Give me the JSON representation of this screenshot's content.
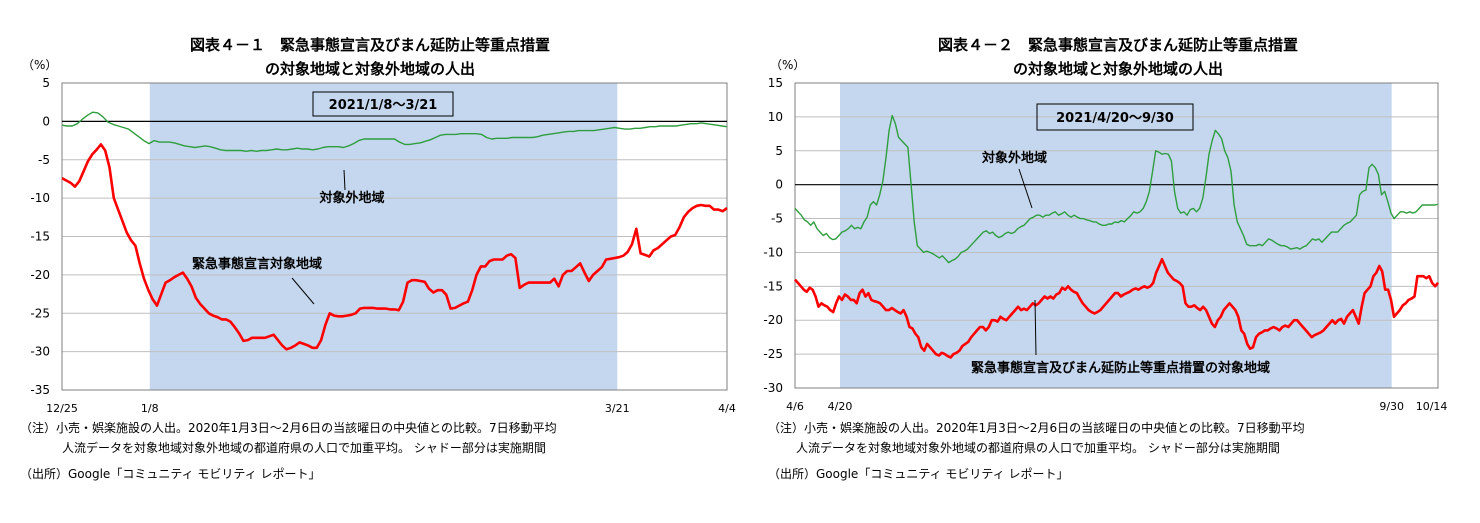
{
  "chart_data": [
    {
      "type": "line",
      "title": "図表４－１　緊急事態宣言及びまん延防止等重点措置",
      "subtitle": "の対象地域と対象外地域の人出",
      "ylabel": "（%）",
      "ylim": [
        -35,
        5
      ],
      "yticks": [
        5,
        0,
        -5,
        -10,
        -15,
        -20,
        -25,
        -30,
        -35
      ],
      "x_tick_labels": [
        "12/25",
        "1/8",
        "3/21",
        "4/4"
      ],
      "shade_label": "2021/1/8～3/21",
      "grid": "horizontal",
      "series": [
        {
          "name": "対象外地域",
          "color": "#2e9e3e",
          "values": [
            -0.5,
            -0.6,
            -0.6,
            -0.3,
            0.3,
            0.8,
            1.2,
            1.1,
            0.6,
            -0.1,
            -0.4,
            -0.6,
            -0.8,
            -1.0,
            -1.5,
            -2.0,
            -2.5,
            -2.9,
            -2.5,
            -2.7,
            -2.7,
            -2.7,
            -2.8,
            -3.0,
            -3.2,
            -3.3,
            -3.4,
            -3.3,
            -3.2,
            -3.3,
            -3.5,
            -3.7,
            -3.8,
            -3.8,
            -3.8,
            -3.8,
            -3.9,
            -3.8,
            -3.9,
            -3.8,
            -3.8,
            -3.7,
            -3.6,
            -3.7,
            -3.7,
            -3.6,
            -3.5,
            -3.6,
            -3.6,
            -3.7,
            -3.6,
            -3.4,
            -3.3,
            -3.3,
            -3.3,
            -3.4,
            -3.2,
            -2.9,
            -2.5,
            -2.3,
            -2.3,
            -2.3,
            -2.3,
            -2.3,
            -2.3,
            -2.3,
            -2.7,
            -3.0,
            -3.0,
            -2.9,
            -2.8,
            -2.6,
            -2.4,
            -2.1,
            -1.8,
            -1.7,
            -1.7,
            -1.7,
            -1.6,
            -1.6,
            -1.6,
            -1.6,
            -1.7,
            -2.1,
            -2.3,
            -2.2,
            -2.2,
            -2.2,
            -2.1,
            -2.1,
            -2.1,
            -2.1,
            -2.1,
            -2.0,
            -1.8,
            -1.7,
            -1.6,
            -1.5,
            -1.4,
            -1.3,
            -1.3,
            -1.2,
            -1.2,
            -1.2,
            -1.2,
            -1.1,
            -1.0,
            -0.9,
            -0.8,
            -0.9,
            -1.0,
            -1.0,
            -0.9,
            -0.9,
            -0.8,
            -0.7,
            -0.7,
            -0.6,
            -0.6,
            -0.6,
            -0.6,
            -0.5,
            -0.4,
            -0.3,
            -0.3,
            -0.2,
            -0.3,
            -0.4,
            -0.5,
            -0.6,
            -0.7
          ]
        },
        {
          "name": "緊急事態宣言対象地域",
          "color": "#ff0000",
          "values": [
            -7.4,
            -7.7,
            -8.0,
            -8.5,
            -7.8,
            -6.5,
            -5.2,
            -4.3,
            -3.7,
            -3.0,
            -3.8,
            -6.0,
            -10.0,
            -11.5,
            -13.0,
            -14.5,
            -15.5,
            -16.2,
            -18.5,
            -20.5,
            -22.0,
            -23.2,
            -24.0,
            -22.5,
            -21.0,
            -20.7,
            -20.3,
            -20.0,
            -19.7,
            -20.5,
            -21.5,
            -23.0,
            -23.8,
            -24.4,
            -25.0,
            -25.3,
            -25.5,
            -25.8,
            -25.8,
            -26.1,
            -26.8,
            -27.6,
            -28.6,
            -28.5,
            -28.2,
            -28.2,
            -28.2,
            -28.2,
            -28.0,
            -27.8,
            -28.5,
            -29.2,
            -29.7,
            -29.5,
            -29.2,
            -28.8,
            -29.0,
            -29.2,
            -29.5,
            -29.5,
            -28.5,
            -26.5,
            -25.0,
            -25.3,
            -25.4,
            -25.4,
            -25.3,
            -25.2,
            -25.0,
            -24.4,
            -24.3,
            -24.3,
            -24.3,
            -24.4,
            -24.4,
            -24.4,
            -24.5,
            -24.5,
            -24.6,
            -23.5,
            -21.0,
            -20.7,
            -20.7,
            -20.8,
            -20.9,
            -21.8,
            -22.3,
            -22.0,
            -22.0,
            -22.6,
            -24.4,
            -24.3,
            -24.0,
            -23.7,
            -23.5,
            -22.0,
            -20.0,
            -18.9,
            -18.9,
            -18.2,
            -18.0,
            -18.0,
            -18.0,
            -17.5,
            -17.3,
            -17.8,
            -21.7,
            -21.3,
            -21.0,
            -21.0,
            -21.0,
            -21.0,
            -21.0,
            -21.0,
            -20.5,
            -21.5,
            -20.0,
            -19.5,
            -19.5,
            -19.0,
            -18.5,
            -19.7,
            -20.8,
            -20.0,
            -19.5,
            -19.0,
            -18.0,
            -17.9,
            -17.8,
            -17.7,
            -17.5,
            -17.0,
            -16.0,
            -14.0,
            -17.2,
            -17.4,
            -17.6,
            -16.8,
            -16.5,
            -16.0,
            -15.5,
            -15.0,
            -14.8,
            -13.8,
            -12.5,
            -11.8,
            -11.3,
            -11.0,
            -10.9,
            -11.0,
            -11.0,
            -11.5,
            -11.5,
            -11.7,
            -11.3
          ]
        }
      ],
      "annotations": [
        "対象外地域",
        "緊急事態宣言対象地域"
      ]
    },
    {
      "type": "line",
      "title": "図表４－２　緊急事態宣言及びまん延防止等重点措置",
      "subtitle": "の対象地域と対象外地域の人出",
      "ylabel": "（%）",
      "ylim": [
        -30,
        15
      ],
      "yticks": [
        15,
        10,
        5,
        0,
        -5,
        -10,
        -15,
        -20,
        -25,
        -30
      ],
      "x_tick_labels": [
        "4/6",
        "4/20",
        "9/30",
        "10/14"
      ],
      "shade_label": "2021/4/20～9/30",
      "grid": "horizontal",
      "series": [
        {
          "name": "対象外地域",
          "color": "#2e9e3e",
          "values": [
            -3.5,
            -4.0,
            -4.5,
            -5.2,
            -5.5,
            -6.0,
            -5.5,
            -6.5,
            -7.0,
            -7.5,
            -7.2,
            -7.8,
            -8.1,
            -8.0,
            -7.5,
            -7.0,
            -6.8,
            -6.5,
            -6.0,
            -6.5,
            -6.3,
            -6.5,
            -5.5,
            -4.8,
            -3.0,
            -2.5,
            -3.0,
            -1.5,
            0.5,
            4.0,
            8.0,
            10.2,
            9.0,
            7.0,
            6.5,
            6.0,
            5.5,
            0.0,
            -5.5,
            -9.0,
            -9.5,
            -10.0,
            -9.8,
            -10.0,
            -10.2,
            -10.5,
            -10.8,
            -10.5,
            -11.0,
            -11.5,
            -11.2,
            -11.0,
            -10.6,
            -10.0,
            -9.8,
            -9.5,
            -9.0,
            -8.5,
            -8.0,
            -7.5,
            -7.0,
            -6.8,
            -7.2,
            -7.0,
            -7.5,
            -7.8,
            -7.6,
            -7.2,
            -7.0,
            -7.2,
            -7.0,
            -6.5,
            -6.2,
            -6.0,
            -5.5,
            -5.0,
            -4.8,
            -4.5,
            -4.5,
            -4.8,
            -4.5,
            -4.5,
            -4.2,
            -4.0,
            -4.5,
            -4.3,
            -4.0,
            -4.5,
            -4.8,
            -4.5,
            -4.8,
            -5.0,
            -5.0,
            -5.2,
            -5.3,
            -5.5,
            -5.5,
            -5.8,
            -6.0,
            -6.0,
            -5.8,
            -5.8,
            -5.5,
            -5.6,
            -5.3,
            -5.5,
            -5.0,
            -4.6,
            -4.0,
            -4.2,
            -4.0,
            -3.5,
            -2.5,
            -1.0,
            2.0,
            5.0,
            4.8,
            4.5,
            4.6,
            4.5,
            3.5,
            -1.0,
            -3.5,
            -4.2,
            -4.0,
            -4.5,
            -3.7,
            -3.5,
            -4.0,
            -3.5,
            -2.0,
            1.0,
            4.5,
            6.5,
            8.0,
            7.5,
            6.8,
            5.0,
            4.0,
            2.0,
            -3.0,
            -5.5,
            -6.5,
            -7.5,
            -8.8,
            -9.0,
            -9.0,
            -9.0,
            -8.8,
            -9.0,
            -8.5,
            -8.0,
            -8.2,
            -8.5,
            -8.8,
            -9.0,
            -9.0,
            -9.2,
            -9.5,
            -9.4,
            -9.3,
            -9.5,
            -9.2,
            -9.0,
            -8.5,
            -8.0,
            -8.2,
            -8.0,
            -8.5,
            -8.0,
            -7.5,
            -7.0,
            -7.0,
            -7.0,
            -6.5,
            -6.0,
            -5.7,
            -5.5,
            -5.0,
            -4.5,
            -1.5,
            -1.0,
            -0.8,
            2.5,
            3.0,
            2.5,
            1.5,
            -1.5,
            -1.0,
            -2.5,
            -4.2,
            -5.0,
            -4.5,
            -4.0,
            -4.0,
            -4.2,
            -4.0,
            -4.2,
            -4.0,
            -3.5,
            -3.0,
            -3.0,
            -3.0,
            -3.0,
            -3.0,
            -2.9
          ]
        },
        {
          "name": "緊急事態宣言及びまん延防止等重点措置の対象地域",
          "color": "#ff0000",
          "values": [
            -14.0,
            -14.5,
            -15.0,
            -15.5,
            -15.8,
            -15.2,
            -15.5,
            -16.5,
            -18.0,
            -17.5,
            -17.8,
            -18.0,
            -18.5,
            -18.8,
            -17.5,
            -16.5,
            -17.0,
            -16.2,
            -16.5,
            -17.0,
            -17.0,
            -17.5,
            -16.0,
            -15.5,
            -16.5,
            -16.0,
            -17.0,
            -17.2,
            -17.3,
            -17.5,
            -18.0,
            -18.5,
            -18.5,
            -18.2,
            -18.5,
            -18.8,
            -19.0,
            -18.5,
            -19.5,
            -21.0,
            -21.2,
            -22.0,
            -22.5,
            -24.0,
            -24.5,
            -23.5,
            -24.0,
            -24.5,
            -25.0,
            -25.2,
            -24.8,
            -25.0,
            -25.3,
            -25.5,
            -25.0,
            -24.8,
            -24.5,
            -23.8,
            -23.5,
            -23.2,
            -22.5,
            -22.0,
            -21.5,
            -21.0,
            -21.0,
            -21.5,
            -21.0,
            -20.0,
            -20.0,
            -20.2,
            -19.5,
            -19.8,
            -20.0,
            -19.5,
            -19.0,
            -18.5,
            -18.0,
            -18.5,
            -18.3,
            -18.5,
            -18.0,
            -17.5,
            -17.8,
            -17.5,
            -17.0,
            -16.5,
            -16.8,
            -16.5,
            -16.8,
            -16.2,
            -16.0,
            -15.2,
            -15.5,
            -15.0,
            -15.5,
            -15.8,
            -16.0,
            -16.8,
            -17.5,
            -18.0,
            -18.5,
            -18.8,
            -19.0,
            -18.8,
            -18.5,
            -18.0,
            -17.5,
            -17.0,
            -16.5,
            -16.0,
            -16.0,
            -16.5,
            -16.2,
            -16.0,
            -15.8,
            -15.5,
            -15.3,
            -15.5,
            -15.2,
            -15.0,
            -15.2,
            -15.0,
            -14.5,
            -13.0,
            -12.0,
            -11.0,
            -12.0,
            -13.0,
            -13.5,
            -14.0,
            -14.2,
            -14.5,
            -15.0,
            -17.5,
            -18.0,
            -18.0,
            -17.8,
            -18.2,
            -18.5,
            -18.0,
            -18.5,
            -19.5,
            -20.5,
            -21.0,
            -20.0,
            -19.5,
            -18.5,
            -18.0,
            -17.5,
            -18.0,
            -18.5,
            -19.5,
            -21.5,
            -22.0,
            -23.5,
            -24.2,
            -24.0,
            -22.5,
            -22.0,
            -21.8,
            -21.5,
            -21.5,
            -21.2,
            -21.0,
            -21.2,
            -21.5,
            -21.0,
            -20.8,
            -21.0,
            -20.5,
            -20.0,
            -20.0,
            -20.5,
            -21.0,
            -21.5,
            -22.0,
            -22.5,
            -22.2,
            -22.0,
            -21.8,
            -21.5,
            -21.0,
            -20.5,
            -20.0,
            -20.5,
            -20.0,
            -19.8,
            -20.5,
            -19.5,
            -19.0,
            -18.5,
            -19.5,
            -20.5,
            -18.0,
            -16.0,
            -15.5,
            -15.0,
            -13.5,
            -13.0,
            -12.0,
            -12.8,
            -15.5,
            -15.5,
            -17.0,
            -19.5,
            -19.0,
            -18.5,
            -17.8,
            -17.5,
            -17.0,
            -16.8,
            -16.5,
            -13.5,
            -13.5,
            -13.5,
            -13.8,
            -13.5,
            -14.5,
            -15.0,
            -14.5
          ]
        }
      ],
      "annotations": [
        "対象外地域",
        "緊急事態宣言及びまん延防止等重点措置の対象地域"
      ]
    }
  ],
  "panels": [
    {
      "title_line1": "図表４－１　緊急事態宣言及びまん延防止等重点措置",
      "title_line2": "の対象地域と対象外地域の人出",
      "unit": "（%）",
      "note1": "（注）小売・娯楽施設の人出。2020年1月3日～2月6日の当該曜日の中央値との比較。7日移動平均",
      "note2": "人流データを対象地域対象外地域の都道府県の人口で加重平均。 シャドー部分は実施期間",
      "source": "（出所）Google「コミュニティ モビリティ レポート」"
    },
    {
      "title_line1": "図表４－２　緊急事態宣言及びまん延防止等重点措置",
      "title_line2": "の対象地域と対象外地域の人出",
      "unit": "（%）",
      "note1": "（注）小売・娯楽施設の人出。2020年1月3日～2月6日の当該曜日の中央値との比較。7日移動平均",
      "note2": "人流データを対象地域対象外地域の都道府県の人口で加重平均。 シャドー部分は実施期間",
      "source": "（出所）Google「コミュニティ モビリティ レポート」"
    }
  ],
  "colors": {
    "shade": "#c5d7ee",
    "green": "#2e9e3e",
    "red": "#ff0000",
    "grid": "#bfbfbf",
    "axis": "#7f7f7f"
  }
}
